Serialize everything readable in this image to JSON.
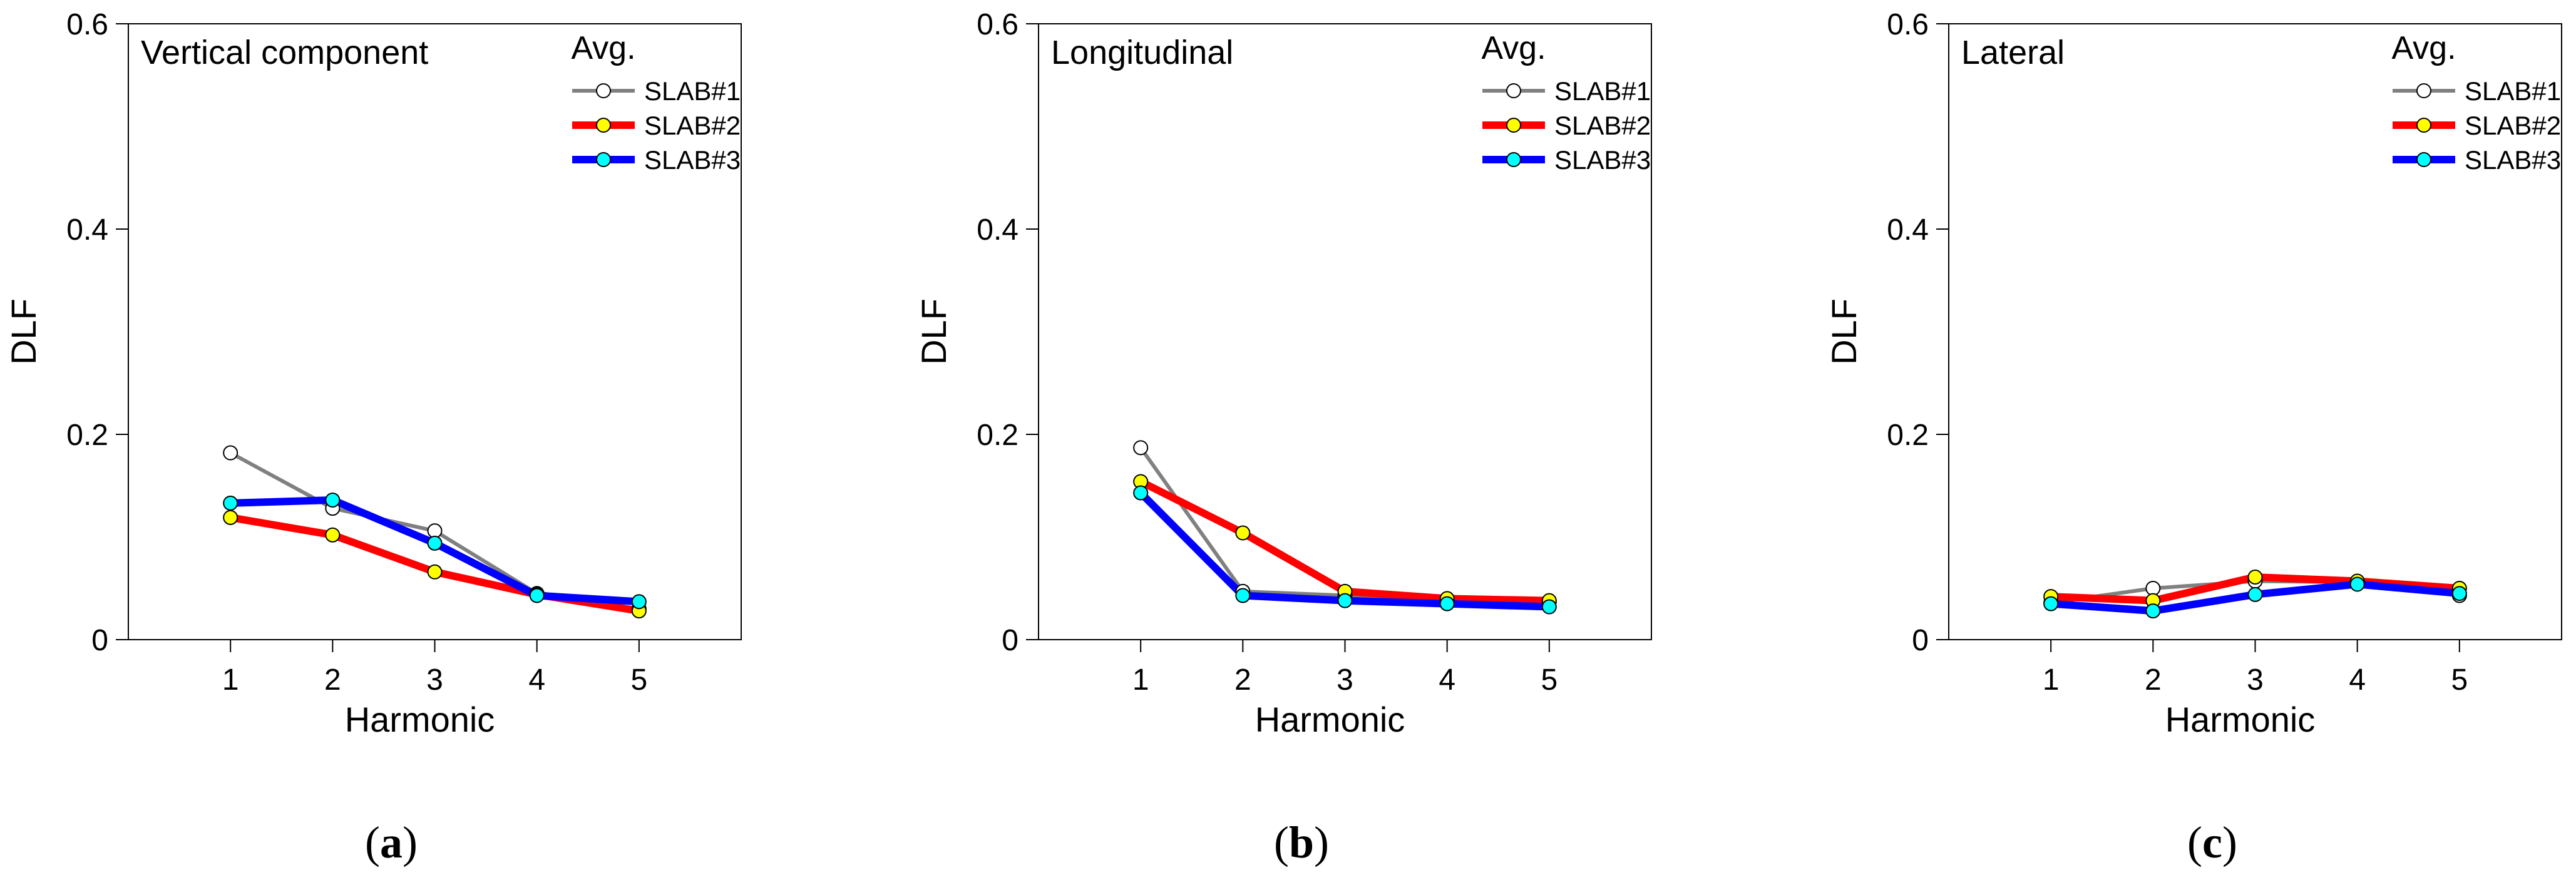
{
  "chart_data": [
    {
      "type": "line",
      "panel_label": "(a)",
      "panel_letter": "a",
      "title": "Vertical component",
      "xlabel": "Harmonic",
      "ylabel": "DLF",
      "x": [
        1,
        2,
        3,
        4,
        5
      ],
      "xlim": [
        0,
        6
      ],
      "ylim": [
        0,
        0.6
      ],
      "yticks": [
        "0",
        "0.2",
        "0.4",
        "0.6"
      ],
      "legend_title": "Avg.",
      "series": [
        {
          "name": "SLAB#1",
          "values": [
            0.182,
            0.128,
            0.106,
            0.045,
            0.03
          ],
          "color": "#808080",
          "marker": "#ffffff"
        },
        {
          "name": "SLAB#2",
          "values": [
            0.119,
            0.102,
            0.066,
            0.044,
            0.028
          ],
          "color": "#ff0000",
          "marker": "#ffff00"
        },
        {
          "name": "SLAB#3",
          "values": [
            0.133,
            0.136,
            0.094,
            0.043,
            0.037
          ],
          "color": "#0000ff",
          "marker": "#00ffff"
        }
      ]
    },
    {
      "type": "line",
      "panel_label": "(b)",
      "panel_letter": "b",
      "title": "Longitudinal",
      "xlabel": "Harmonic",
      "ylabel": "DLF",
      "x": [
        1,
        2,
        3,
        4,
        5
      ],
      "xlim": [
        0,
        6
      ],
      "ylim": [
        0,
        0.6
      ],
      "yticks": [
        "0",
        "0.2",
        "0.4",
        "0.6"
      ],
      "legend_title": "Avg.",
      "series": [
        {
          "name": "SLAB#1",
          "values": [
            0.187,
            0.047,
            0.043,
            0.036,
            0.037
          ],
          "color": "#808080",
          "marker": "#ffffff"
        },
        {
          "name": "SLAB#2",
          "values": [
            0.154,
            0.104,
            0.047,
            0.04,
            0.038
          ],
          "color": "#ff0000",
          "marker": "#ffff00"
        },
        {
          "name": "SLAB#3",
          "values": [
            0.143,
            0.043,
            0.038,
            0.035,
            0.032
          ],
          "color": "#0000ff",
          "marker": "#00ffff"
        }
      ]
    },
    {
      "type": "line",
      "panel_label": "(c)",
      "panel_letter": "c",
      "title": "Lateral",
      "xlabel": "Harmonic",
      "ylabel": "DLF",
      "x": [
        1,
        2,
        3,
        4,
        5
      ],
      "xlim": [
        0,
        6
      ],
      "ylim": [
        0,
        0.6
      ],
      "yticks": [
        "0",
        "0.2",
        "0.4",
        "0.6"
      ],
      "legend_title": "Avg.",
      "series": [
        {
          "name": "SLAB#1",
          "values": [
            0.036,
            0.05,
            0.057,
            0.056,
            0.043
          ],
          "color": "#808080",
          "marker": "#ffffff"
        },
        {
          "name": "SLAB#2",
          "values": [
            0.042,
            0.038,
            0.061,
            0.057,
            0.05
          ],
          "color": "#ff0000",
          "marker": "#ffff00"
        },
        {
          "name": "SLAB#3",
          "values": [
            0.035,
            0.028,
            0.044,
            0.054,
            0.045
          ],
          "color": "#0000ff",
          "marker": "#00ffff"
        }
      ]
    }
  ]
}
